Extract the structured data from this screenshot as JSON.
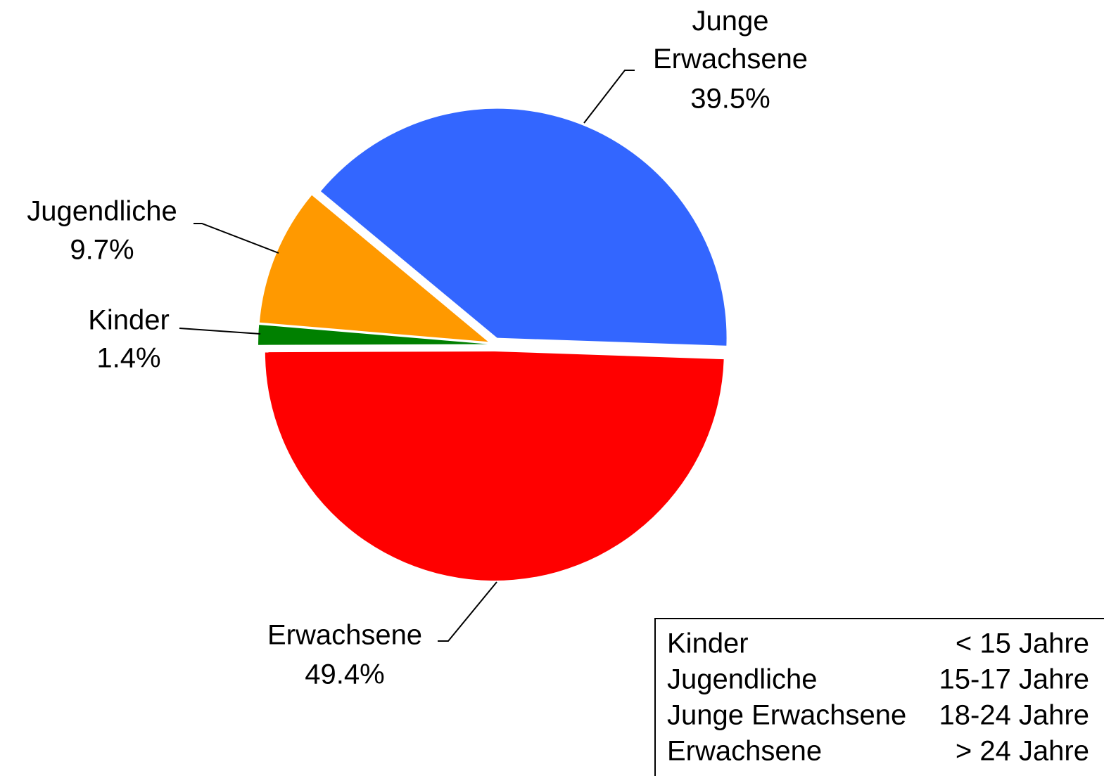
{
  "chart_data": {
    "type": "pie",
    "categories": [
      "Kinder",
      "Jugendliche",
      "Junge Erwachsene",
      "Erwachsene"
    ],
    "values": [
      1.4,
      9.7,
      39.5,
      49.4
    ],
    "value_labels": [
      "1.4%",
      "9.7%",
      "39.5%",
      "49.4%"
    ],
    "colors": [
      "#008000",
      "#ff9900",
      "#3366ff",
      "#ff0000"
    ]
  },
  "legend": {
    "rows": [
      [
        "Kinder",
        "< 15 Jahre"
      ],
      [
        "Jugendliche",
        "15-17 Jahre"
      ],
      [
        "Junge Erwachsene",
        "18-24 Jahre"
      ],
      [
        "Erwachsene",
        "> 24 Jahre"
      ]
    ]
  }
}
